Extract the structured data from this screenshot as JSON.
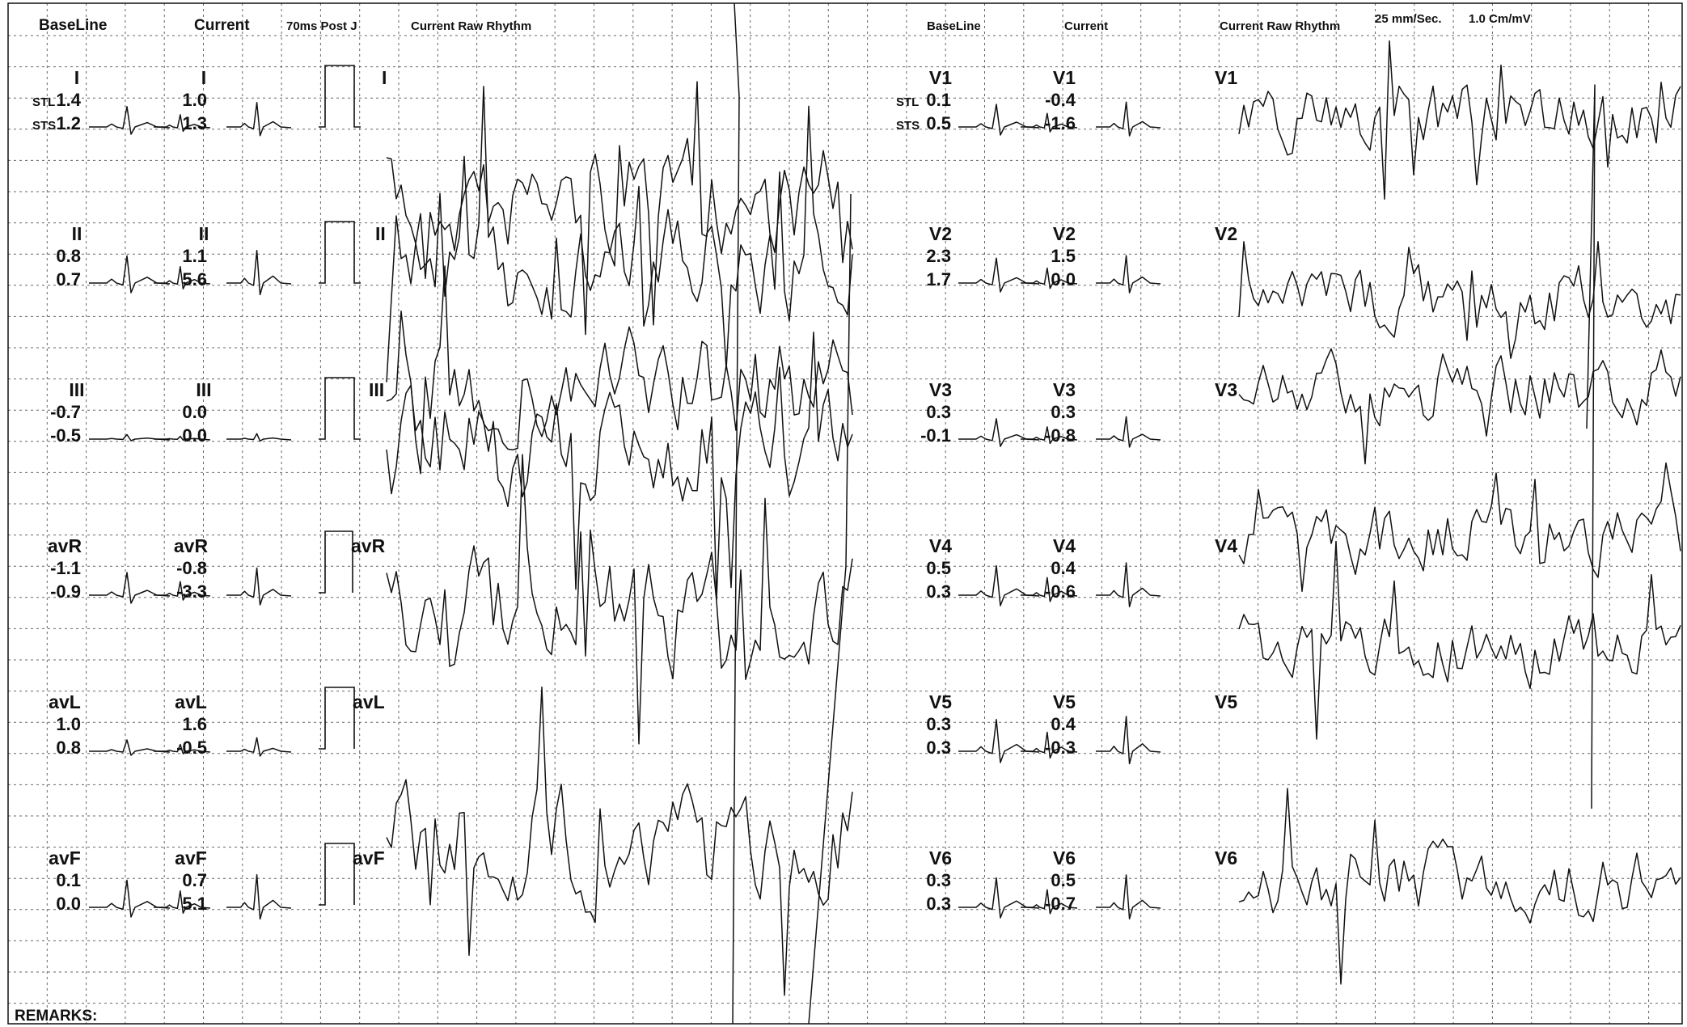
{
  "header": {
    "left_baseline": "BaseLine",
    "left_current": "Current",
    "post_j": "70ms Post J",
    "left_raw": "Current Raw Rhythm",
    "right_baseline": "BaseLine",
    "right_current": "Current",
    "right_raw": "Current Raw Rhythm",
    "speed": "25 mm/Sec.",
    "gain": "1.0 Cm/mV"
  },
  "row_labels": {
    "stl": "STL",
    "sts": "STS"
  },
  "left_leads": [
    {
      "name": "I",
      "baseline_stl": "1.4",
      "baseline_sts": "1.2",
      "current_stl": "1.0",
      "current_sts": "1.3"
    },
    {
      "name": "II",
      "baseline_stl": "0.8",
      "baseline_sts": "0.7",
      "current_stl": "1.1",
      "current_sts": "5.6"
    },
    {
      "name": "III",
      "baseline_stl": "-0.7",
      "baseline_sts": "-0.5",
      "current_stl": "0.0",
      "current_sts": "0.0"
    },
    {
      "name": "avR",
      "baseline_stl": "-1.1",
      "baseline_sts": "-0.9",
      "current_stl": "-0.8",
      "current_sts": "-3.3"
    },
    {
      "name": "avL",
      "baseline_stl": "1.0",
      "baseline_sts": "0.8",
      "current_stl": "1.6",
      "current_sts": "-0.5"
    },
    {
      "name": "avF",
      "baseline_stl": "0.1",
      "baseline_sts": "0.0",
      "current_stl": "0.7",
      "current_sts": "5.1"
    }
  ],
  "right_leads": [
    {
      "name": "V1",
      "baseline_stl": "0.1",
      "baseline_sts": "0.5",
      "current_stl": "-0.4",
      "current_sts": "-1.6"
    },
    {
      "name": "V2",
      "baseline_stl": "2.3",
      "baseline_sts": "1.7",
      "current_stl": "1.5",
      "current_sts": "0.0"
    },
    {
      "name": "V3",
      "baseline_stl": "0.3",
      "baseline_sts": "-0.1",
      "current_stl": "0.3",
      "current_sts": "-0.8"
    },
    {
      "name": "V4",
      "baseline_stl": "0.5",
      "baseline_sts": "0.3",
      "current_stl": "0.4",
      "current_sts": "-0.6"
    },
    {
      "name": "V5",
      "baseline_stl": "0.3",
      "baseline_sts": "0.3",
      "current_stl": "0.4",
      "current_sts": "-0.3"
    },
    {
      "name": "V6",
      "baseline_stl": "0.3",
      "baseline_sts": "0.3",
      "current_stl": "0.5",
      "current_sts": "-0.7"
    }
  ],
  "remarks_label": "REMARKS:"
}
